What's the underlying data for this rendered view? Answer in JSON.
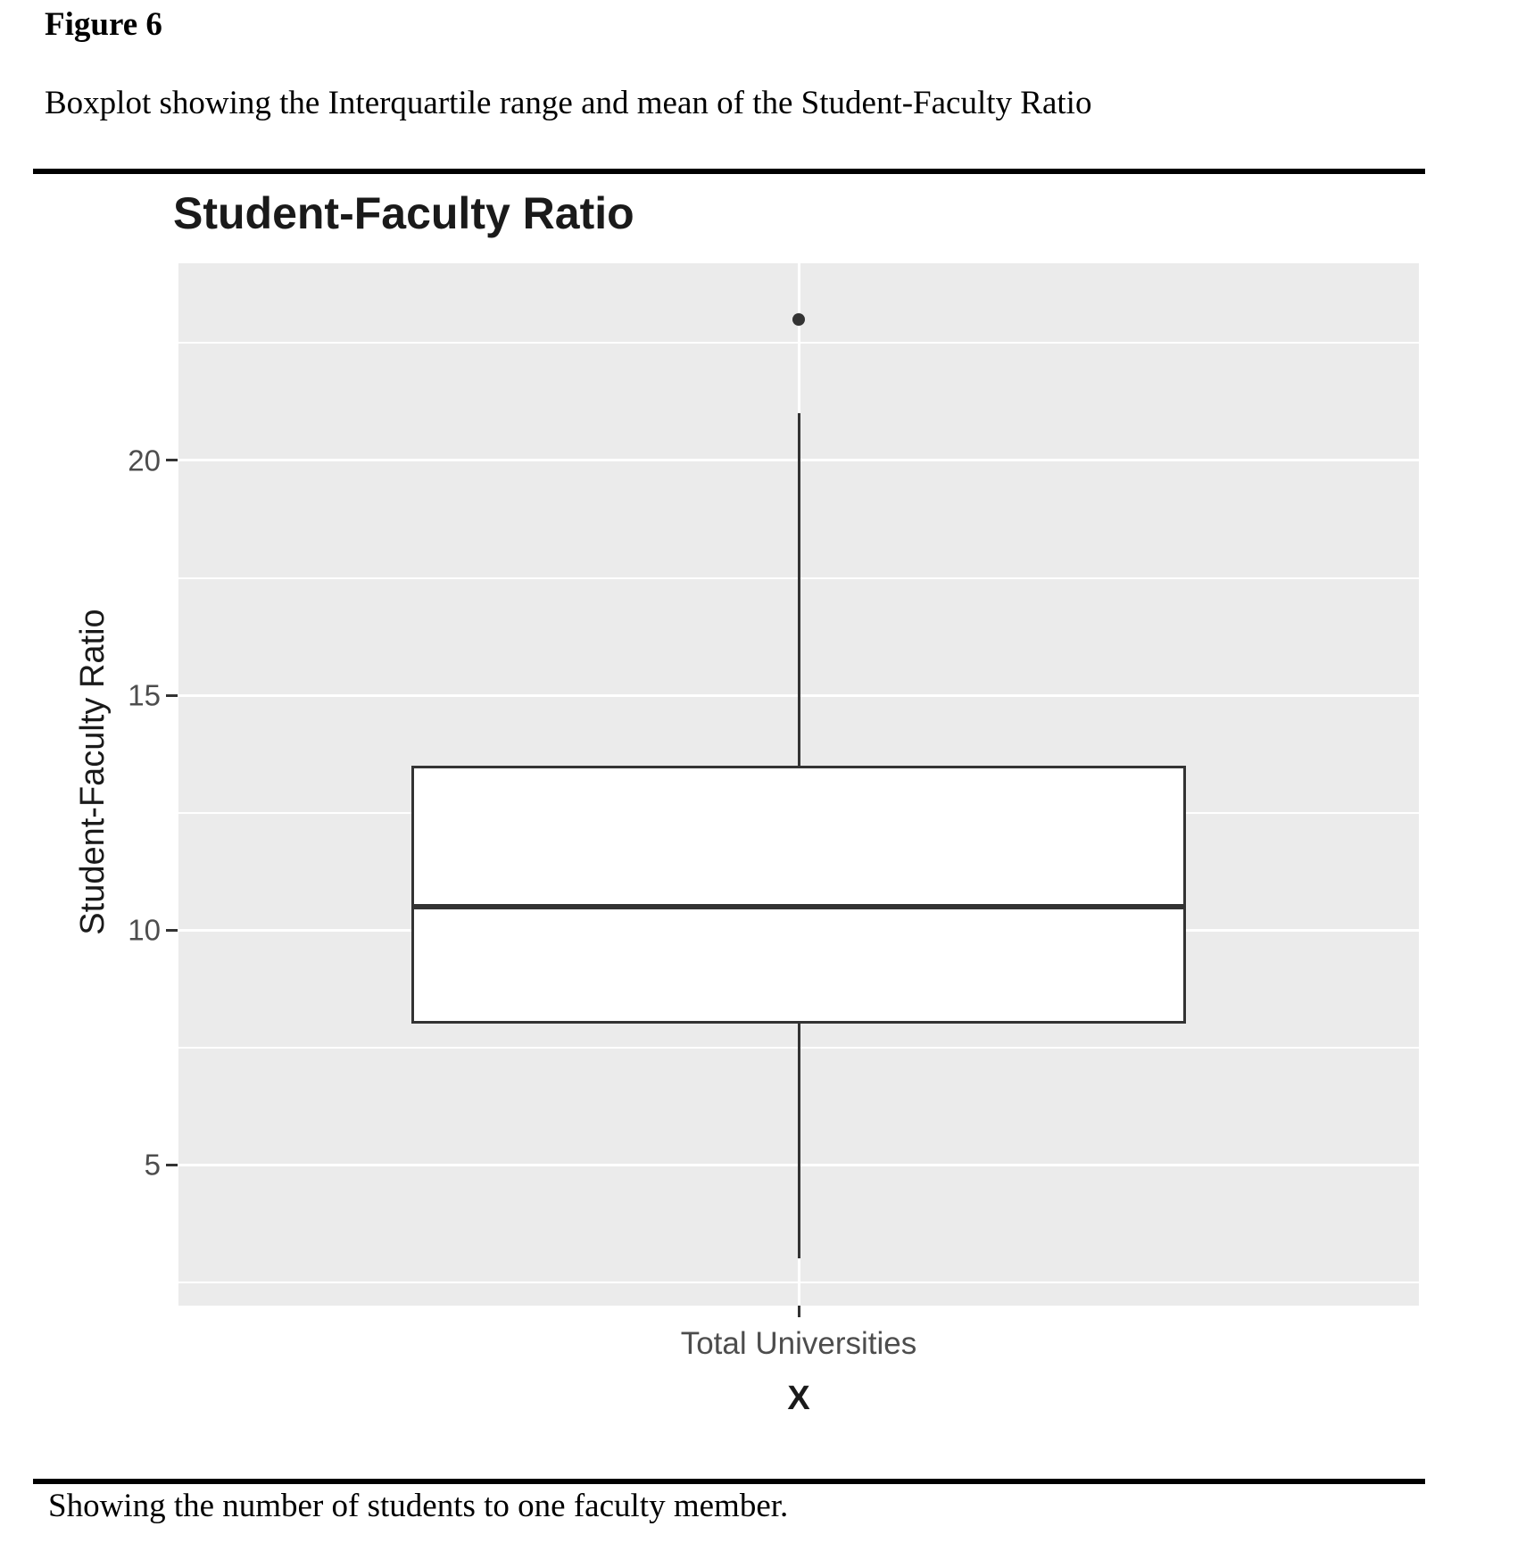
{
  "document": {
    "figure_label": "Figure 6",
    "caption": "Boxplot showing the Interquartile range and mean of the Student-Faculty Ratio",
    "note": "Showing the number of students to one faculty member."
  },
  "chart_data": {
    "type": "boxplot",
    "title": "Student-Faculty Ratio",
    "ylabel": "Student-Faculty Ratio",
    "xlabel": "X",
    "categories": [
      "Total Universities"
    ],
    "series": [
      {
        "name": "Total Universities",
        "lower_whisker": 3,
        "q1": 8,
        "median": 10.5,
        "q3": 13.5,
        "upper_whisker": 21,
        "outliers": [
          23
        ]
      }
    ],
    "ylim": [
      2,
      24.2
    ],
    "yticks_major": [
      20,
      15,
      10,
      5
    ],
    "yticks_minor": [
      22.5,
      17.5,
      12.5,
      7.5,
      2.5
    ],
    "grid": true,
    "legend": false,
    "colors": {
      "panel_background": "#EBEBEB",
      "gridline": "#FFFFFF",
      "box_border": "#333333",
      "box_fill": "#FFFFFF",
      "median": "#333333",
      "outlier": "#333333",
      "tick_label": "#4D4D4D",
      "axis_title": "#1A1A1A",
      "document_text": "#000000"
    }
  }
}
